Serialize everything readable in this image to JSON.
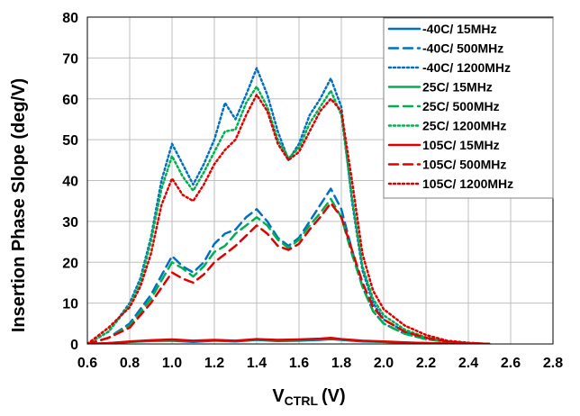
{
  "chart_data": {
    "type": "line",
    "title": "",
    "xlabel": {
      "main": "V",
      "sub": "CTRL",
      "unit": "(V)"
    },
    "ylabel": "Insertion Phase Slope (deg/V)",
    "xlim": [
      0.6,
      2.8
    ],
    "ylim": [
      0,
      80
    ],
    "xticks": [
      "0.6",
      "0.8",
      "1.0",
      "1.2",
      "1.4",
      "1.6",
      "1.8",
      "2.0",
      "2.2",
      "2.4",
      "2.6",
      "2.8"
    ],
    "yticks": [
      "0",
      "10",
      "20",
      "30",
      "40",
      "50",
      "60",
      "70",
      "80"
    ],
    "grid": true,
    "legend_position": "top-right",
    "series": [
      {
        "name": "-40C/  15MHz",
        "color": "#0070C0",
        "dash": "solid",
        "x": [
          0.6,
          0.7,
          0.8,
          0.9,
          1.0,
          1.1,
          1.2,
          1.3,
          1.4,
          1.5,
          1.6,
          1.7,
          1.75,
          1.8,
          1.9,
          2.0,
          2.1,
          2.2,
          2.3,
          2.4,
          2.5
        ],
        "y": [
          0,
          0.2,
          0.5,
          0.7,
          0.8,
          0.5,
          0.8,
          0.6,
          1.0,
          0.7,
          0.8,
          1.0,
          1.2,
          1.0,
          0.6,
          0.5,
          0.3,
          0.2,
          0.1,
          0.1,
          0
        ]
      },
      {
        "name": "-40C/  500MHz",
        "color": "#0070C0",
        "dash": "dash",
        "x": [
          0.6,
          0.7,
          0.8,
          0.9,
          1.0,
          1.05,
          1.1,
          1.15,
          1.2,
          1.25,
          1.3,
          1.35,
          1.4,
          1.45,
          1.5,
          1.55,
          1.6,
          1.65,
          1.7,
          1.75,
          1.8,
          1.85,
          1.9,
          1.95,
          2.0,
          2.1,
          2.2,
          2.3,
          2.4,
          2.5
        ],
        "y": [
          0,
          1.5,
          5,
          12,
          21.5,
          19,
          17.5,
          20,
          24.5,
          27,
          28,
          31,
          33,
          30,
          26,
          24,
          26,
          30,
          34,
          38,
          33,
          23,
          14,
          8,
          5,
          2.5,
          1.2,
          0.5,
          0.2,
          0
        ]
      },
      {
        "name": "-40C/  1200MHz",
        "color": "#0070C0",
        "dash": "dot",
        "x": [
          0.6,
          0.7,
          0.8,
          0.85,
          0.9,
          0.95,
          1.0,
          1.05,
          1.1,
          1.15,
          1.2,
          1.25,
          1.3,
          1.35,
          1.4,
          1.45,
          1.5,
          1.55,
          1.6,
          1.65,
          1.7,
          1.75,
          1.8,
          1.85,
          1.9,
          1.95,
          2.0,
          2.1,
          2.2,
          2.3,
          2.4,
          2.5
        ],
        "y": [
          0,
          3,
          10,
          16,
          26,
          40,
          49,
          44,
          39,
          44,
          50,
          59,
          55,
          61,
          67.5,
          61,
          52,
          45,
          49,
          56,
          60,
          65,
          58,
          35,
          18,
          10,
          6,
          3,
          1.5,
          0.5,
          0.2,
          0
        ]
      },
      {
        "name": "25C/  15MHz",
        "color": "#00B050",
        "dash": "solid",
        "x": [
          0.6,
          0.7,
          0.8,
          0.9,
          1.0,
          1.1,
          1.2,
          1.3,
          1.4,
          1.5,
          1.6,
          1.7,
          1.75,
          1.8,
          1.9,
          2.0,
          2.1,
          2.2,
          2.3,
          2.4,
          2.5
        ],
        "y": [
          0,
          0.2,
          0.5,
          0.8,
          1.0,
          0.7,
          0.9,
          0.7,
          1.1,
          0.9,
          1.0,
          1.2,
          1.4,
          1.1,
          0.7,
          0.5,
          0.3,
          0.2,
          0.1,
          0.1,
          0
        ]
      },
      {
        "name": "25C/  500MHz",
        "color": "#00B050",
        "dash": "dash",
        "x": [
          0.6,
          0.7,
          0.8,
          0.9,
          1.0,
          1.05,
          1.1,
          1.15,
          1.2,
          1.25,
          1.3,
          1.35,
          1.4,
          1.45,
          1.5,
          1.55,
          1.6,
          1.65,
          1.7,
          1.75,
          1.8,
          1.85,
          1.9,
          1.95,
          2.0,
          2.1,
          2.2,
          2.3,
          2.4,
          2.5
        ],
        "y": [
          0,
          1.5,
          4.5,
          11,
          20,
          18.5,
          16.5,
          19,
          22.5,
          24,
          27,
          29,
          31,
          29,
          25.5,
          23.5,
          25.5,
          29,
          32,
          35.5,
          31,
          22,
          14,
          8,
          5,
          2.5,
          1.2,
          0.5,
          0.2,
          0
        ]
      },
      {
        "name": "25C/  1200MHz",
        "color": "#00B050",
        "dash": "dot",
        "x": [
          0.6,
          0.7,
          0.8,
          0.85,
          0.9,
          0.95,
          1.0,
          1.05,
          1.1,
          1.15,
          1.2,
          1.25,
          1.3,
          1.35,
          1.4,
          1.45,
          1.5,
          1.55,
          1.6,
          1.65,
          1.7,
          1.75,
          1.8,
          1.85,
          1.9,
          1.95,
          2.0,
          2.1,
          2.2,
          2.3,
          2.4,
          2.5
        ],
        "y": [
          0,
          3,
          9.5,
          15,
          25,
          38,
          46,
          41,
          37.5,
          42,
          47,
          52,
          52.5,
          59,
          63,
          58,
          50,
          45.5,
          48,
          54,
          58,
          62,
          56,
          36,
          19,
          11,
          7,
          3.5,
          1.6,
          0.6,
          0.2,
          0
        ]
      },
      {
        "name": "105C/  15MHz",
        "color": "#E00000",
        "dash": "solid",
        "x": [
          0.6,
          0.7,
          0.8,
          0.9,
          1.0,
          1.1,
          1.2,
          1.3,
          1.4,
          1.5,
          1.6,
          1.7,
          1.75,
          1.8,
          1.9,
          2.0,
          2.1,
          2.2,
          2.3,
          2.4,
          2.5
        ],
        "y": [
          0,
          0.2,
          0.6,
          0.9,
          1.1,
          0.8,
          1.0,
          0.8,
          1.2,
          1.0,
          1.1,
          1.3,
          1.5,
          1.2,
          0.8,
          0.6,
          0.4,
          0.2,
          0.1,
          0.1,
          0
        ]
      },
      {
        "name": "105C/  500MHz",
        "color": "#E00000",
        "dash": "dash",
        "x": [
          0.6,
          0.7,
          0.8,
          0.9,
          1.0,
          1.05,
          1.1,
          1.15,
          1.2,
          1.25,
          1.3,
          1.35,
          1.4,
          1.45,
          1.5,
          1.55,
          1.6,
          1.65,
          1.7,
          1.75,
          1.8,
          1.85,
          1.9,
          1.95,
          2.0,
          2.1,
          2.2,
          2.3,
          2.4,
          2.5
        ],
        "y": [
          0,
          1.5,
          4,
          10,
          17.5,
          16,
          15,
          17,
          20,
          22,
          24,
          26.5,
          29,
          27,
          24,
          23,
          24.5,
          28,
          31,
          34.5,
          31,
          23,
          15,
          9,
          6,
          3,
          1.5,
          0.6,
          0.2,
          0
        ]
      },
      {
        "name": "105C/  1200MHz",
        "color": "#E00000",
        "dash": "dot",
        "x": [
          0.6,
          0.7,
          0.8,
          0.85,
          0.9,
          0.95,
          1.0,
          1.05,
          1.1,
          1.15,
          1.2,
          1.25,
          1.3,
          1.35,
          1.4,
          1.45,
          1.5,
          1.55,
          1.6,
          1.65,
          1.7,
          1.75,
          1.8,
          1.85,
          1.9,
          1.95,
          2.0,
          2.1,
          2.2,
          2.3,
          2.4,
          2.5
        ],
        "y": [
          0,
          4,
          9,
          14,
          22,
          34,
          40.5,
          36.5,
          35,
          39,
          44,
          47.5,
          50,
          56,
          61,
          57,
          49,
          45,
          47,
          52,
          57,
          60,
          57,
          40,
          22,
          13,
          8.5,
          4.5,
          2.2,
          0.8,
          0.3,
          0
        ]
      }
    ]
  }
}
